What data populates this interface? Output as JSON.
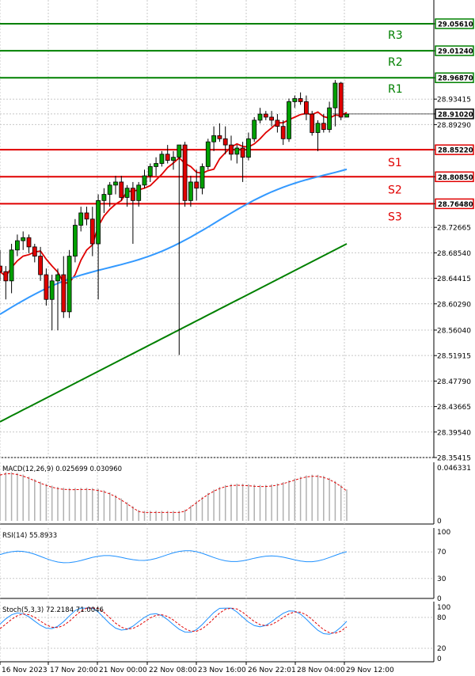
{
  "chart_data": [
    {
      "type": "candlestick",
      "symbol_price_pane": true,
      "y_ticks": [
        "29.05610",
        "29.01240",
        "28.96870",
        "28.93415",
        "28.91020",
        "28.89290",
        "28.85220",
        "28.80850",
        "28.76480",
        "28.72665",
        "28.68540",
        "28.64415",
        "28.60290",
        "28.56040",
        "28.51915",
        "28.47790",
        "28.43665",
        "28.39540",
        "28.35415"
      ],
      "current_price": "28.91020",
      "levels": [
        {
          "name": "R3",
          "value": "29.05610",
          "color": "#008000"
        },
        {
          "name": "R2",
          "value": "29.01240",
          "color": "#008000"
        },
        {
          "name": "R1",
          "value": "28.96870",
          "color": "#008000"
        },
        {
          "name": "S1",
          "value": "28.85220",
          "color": "#e00000"
        },
        {
          "name": "S2",
          "value": "28.80850",
          "color": "#e00000"
        },
        {
          "name": "S3",
          "value": "28.76480",
          "color": "#e00000"
        }
      ],
      "candles": [
        [
          28.664,
          28.69,
          28.64,
          28.655
        ],
        [
          28.655,
          28.664,
          28.61,
          28.64
        ],
        [
          28.64,
          28.7,
          28.62,
          28.69
        ],
        [
          28.69,
          28.715,
          28.68,
          28.705
        ],
        [
          28.705,
          28.72,
          28.69,
          28.71
        ],
        [
          28.71,
          28.715,
          28.685,
          28.695
        ],
        [
          28.695,
          28.7,
          28.67,
          28.68
        ],
        [
          28.68,
          28.695,
          28.64,
          28.65
        ],
        [
          28.65,
          28.66,
          28.6,
          28.61
        ],
        [
          28.61,
          28.65,
          28.56,
          28.64
        ],
        [
          28.64,
          28.66,
          28.56,
          28.65
        ],
        [
          28.65,
          28.68,
          28.58,
          28.59
        ],
        [
          28.59,
          28.69,
          28.58,
          28.68
        ],
        [
          28.68,
          28.74,
          28.67,
          28.73
        ],
        [
          28.73,
          28.76,
          28.72,
          28.75
        ],
        [
          28.75,
          28.76,
          28.73,
          28.74
        ],
        [
          28.74,
          28.76,
          28.68,
          28.7
        ],
        [
          28.7,
          28.78,
          28.61,
          28.77
        ],
        [
          28.77,
          28.79,
          28.75,
          28.78
        ],
        [
          28.78,
          28.8,
          28.76,
          28.795
        ],
        [
          28.795,
          28.81,
          28.78,
          28.8
        ],
        [
          28.8,
          28.81,
          28.77,
          28.775
        ],
        [
          28.775,
          28.795,
          28.76,
          28.79
        ],
        [
          28.79,
          28.8,
          28.7,
          28.77
        ],
        [
          28.77,
          28.8,
          28.76,
          28.795
        ],
        [
          28.795,
          28.82,
          28.79,
          28.81
        ],
        [
          28.81,
          28.83,
          28.8,
          28.825
        ],
        [
          28.825,
          28.84,
          28.81,
          28.83
        ],
        [
          28.83,
          28.85,
          28.825,
          28.845
        ],
        [
          28.845,
          28.86,
          28.83,
          28.835
        ],
        [
          28.835,
          28.85,
          28.82,
          28.84
        ],
        [
          28.84,
          28.86,
          28.52,
          28.86
        ],
        [
          28.86,
          28.865,
          28.76,
          28.77
        ],
        [
          28.77,
          28.81,
          28.76,
          28.8
        ],
        [
          28.8,
          28.82,
          28.77,
          28.79
        ],
        [
          28.79,
          28.83,
          28.78,
          28.825
        ],
        [
          28.825,
          28.87,
          28.82,
          28.865
        ],
        [
          28.865,
          28.89,
          28.85,
          28.875
        ],
        [
          28.875,
          28.895,
          28.865,
          28.87
        ],
        [
          28.87,
          28.89,
          28.845,
          28.86
        ],
        [
          28.86,
          28.875,
          28.835,
          28.845
        ],
        [
          28.845,
          28.86,
          28.83,
          28.855
        ],
        [
          28.855,
          28.865,
          28.8,
          28.84
        ],
        [
          28.84,
          28.88,
          28.835,
          28.87
        ],
        [
          28.87,
          28.905,
          28.865,
          28.9
        ],
        [
          28.9,
          28.92,
          28.895,
          28.91
        ],
        [
          28.91,
          28.915,
          28.9,
          28.905
        ],
        [
          28.905,
          28.915,
          28.89,
          28.9
        ],
        [
          28.9,
          28.91,
          28.88,
          28.89
        ],
        [
          28.89,
          28.9,
          28.86,
          28.87
        ],
        [
          28.87,
          28.935,
          28.865,
          28.93
        ],
        [
          28.93,
          28.94,
          28.92,
          28.935
        ],
        [
          28.935,
          28.945,
          28.925,
          28.93
        ],
        [
          28.93,
          28.94,
          28.9,
          28.91
        ],
        [
          28.91,
          28.915,
          28.875,
          28.88
        ],
        [
          28.88,
          28.9,
          28.85,
          28.895
        ],
        [
          28.895,
          28.91,
          28.88,
          28.885
        ],
        [
          28.885,
          28.93,
          28.88,
          28.92
        ],
        [
          28.92,
          28.965,
          28.89,
          28.96
        ],
        [
          28.96,
          28.962,
          28.9,
          28.905
        ],
        [
          28.905,
          28.91,
          28.905,
          28.91
        ]
      ],
      "x_labels": [
        "16 Nov 2023",
        "17 Nov 20:00",
        "21 Nov 00:00",
        "22 Nov 08:00",
        "23 Nov 16:00",
        "26 Nov 22:01",
        "28 Nov 04:00",
        "29 Nov 12:00"
      ]
    },
    {
      "type": "bar",
      "name": "MACD",
      "label": "MACD(12,26,9) 0.025699 0.030960",
      "y_ticks": [
        "0.046331",
        "0"
      ]
    },
    {
      "type": "line",
      "name": "RSI",
      "label": "RSI(14) 55.8933",
      "y_ticks": [
        "100",
        "70",
        "30",
        "0"
      ]
    },
    {
      "type": "line",
      "name": "Stochastic",
      "label": "Stoch(5,3,3) 72.2184 71.0046",
      "y_ticks": [
        "100",
        "80",
        "20",
        "0"
      ]
    }
  ],
  "colors": {
    "bull": "#00a000",
    "bear": "#e00000",
    "ma_fast": "#e00000",
    "ma_mid": "#3399ff",
    "ma_slow": "#008000",
    "resistance": "#008000",
    "support": "#e00000",
    "grid": "#c8c8c8",
    "ind_line": "#1e90ff",
    "signal": "#e00000"
  }
}
